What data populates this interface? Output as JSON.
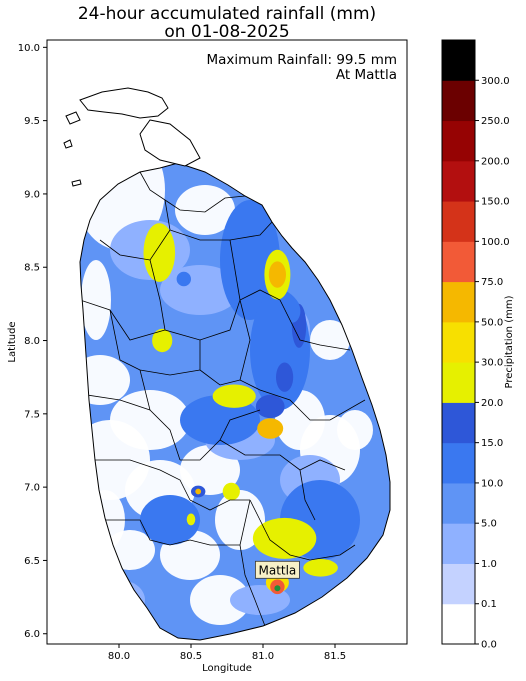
{
  "title": {
    "line1": "24-hour accumulated rainfall (mm)",
    "line2": "on 01-08-2025"
  },
  "annotation": {
    "line1": "Maximum Rainfall: 99.5 mm",
    "line2": "At Mattla"
  },
  "marker": {
    "label": "Mattla",
    "lon": 81.1,
    "lat": 6.31
  },
  "axes": {
    "xlabel": "Longitude",
    "ylabel": "Latitude",
    "xlim": [
      79.5,
      82.0
    ],
    "ylim": [
      5.93,
      10.05
    ],
    "xticks": [
      "80.0",
      "80.5",
      "81.0",
      "81.5"
    ],
    "xtick_values": [
      80.0,
      80.5,
      81.0,
      81.5
    ],
    "yticks": [
      "6.0",
      "6.5",
      "7.0",
      "7.5",
      "8.0",
      "8.5",
      "9.0",
      "9.5",
      "10.0"
    ],
    "ytick_values": [
      6.0,
      6.5,
      7.0,
      7.5,
      8.0,
      8.5,
      9.0,
      9.5,
      10.0
    ]
  },
  "colorbar": {
    "label": "Precipitation (mm)",
    "ticks": [
      "0.0",
      "0.1",
      "1.0",
      "5.0",
      "10.0",
      "15.0",
      "20.0",
      "30.0",
      "50.0",
      "75.0",
      "100.0",
      "150.0",
      "200.0",
      "250.0",
      "300.0"
    ],
    "colors": [
      "#ffffff",
      "#c4d2ff",
      "#8fb1ff",
      "#5f94f5",
      "#3a78f0",
      "#2e57d8",
      "#e6f000",
      "#f7e000",
      "#f5b800",
      "#f25a37",
      "#d43319",
      "#b30f0f",
      "#960303",
      "#6b0000",
      "#000000"
    ]
  },
  "chart_data": {
    "type": "heatmap",
    "title": "24-hour accumulated rainfall (mm) on 01-08-2025",
    "xlabel": "Longitude",
    "ylabel": "Latitude",
    "max_rainfall_mm": 99.5,
    "max_location": "Mattla",
    "rain_zones": [
      {
        "lon": 80.28,
        "lat": 8.6,
        "mm": 25
      },
      {
        "lon": 80.45,
        "lat": 8.42,
        "mm": 12
      },
      {
        "lon": 80.3,
        "lat": 8.0,
        "mm": 20
      },
      {
        "lon": 80.8,
        "lat": 7.62,
        "mm": 22
      },
      {
        "lon": 81.05,
        "lat": 7.55,
        "mm": 18
      },
      {
        "lon": 81.05,
        "lat": 7.4,
        "mm": 60
      },
      {
        "lon": 81.15,
        "lat": 7.75,
        "mm": 17
      },
      {
        "lon": 81.1,
        "lat": 8.45,
        "mm": 28
      },
      {
        "lon": 81.1,
        "lat": 8.45,
        "mm": 60
      },
      {
        "lon": 81.25,
        "lat": 8.1,
        "mm": 18
      },
      {
        "lon": 81.2,
        "lat": 8.2,
        "mm": 12
      },
      {
        "lon": 80.55,
        "lat": 6.97,
        "mm": 18
      },
      {
        "lon": 80.55,
        "lat": 6.97,
        "mm": 60
      },
      {
        "lon": 80.78,
        "lat": 6.97,
        "mm": 22
      },
      {
        "lon": 80.5,
        "lat": 6.78,
        "mm": 20
      },
      {
        "lon": 81.15,
        "lat": 6.65,
        "mm": 25
      },
      {
        "lon": 81.4,
        "lat": 6.45,
        "mm": 20
      },
      {
        "lon": 81.1,
        "lat": 6.35,
        "mm": 40
      },
      {
        "lon": 81.1,
        "lat": 6.32,
        "mm": 80
      },
      {
        "lon": 81.12,
        "lat": 6.33,
        "mm": 99.5
      }
    ]
  }
}
